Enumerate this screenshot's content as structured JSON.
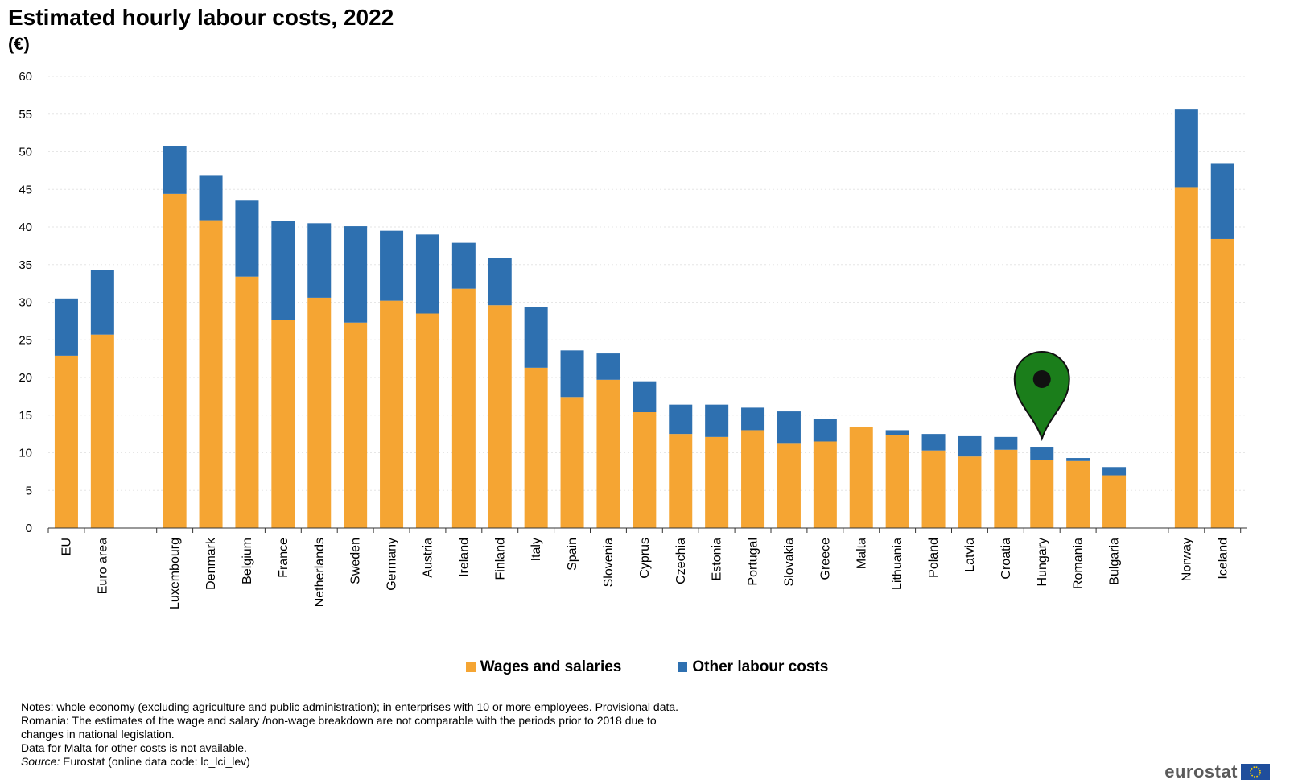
{
  "title": "Estimated hourly labour costs, 2022",
  "unit": "(€)",
  "colors": {
    "wages": "#f5a533",
    "other": "#2e70b0",
    "marker": "#1b7e1b"
  },
  "legend": {
    "wages_label": "Wages and salaries",
    "other_label": "Other labour costs"
  },
  "notes": [
    "Notes: whole economy (excluding agriculture and public administration); in enterprises with 10 or more employees. Provisional data.",
    "Romania: The estimates of the wage and salary /non-wage breakdown are not comparable with the periods prior to 2018 due to",
    "changes in national legislation.",
    "Data for Malta for other costs is not available."
  ],
  "source": {
    "label": "Source:",
    "text": "Eurostat (online data code: lc_lci_lev)"
  },
  "logo": {
    "text": "eurostat",
    "flag_icon": "eu-flag-icon"
  },
  "annotation": {
    "marker_icon": "map-pin-icon",
    "marker_category": "Hungary"
  },
  "chart_data": {
    "type": "bar",
    "stacked": true,
    "title": "Estimated hourly labour costs, 2022",
    "ylabel": "(€)",
    "xlabel": "",
    "ylim": [
      0,
      60
    ],
    "yticks": [
      0,
      5,
      10,
      15,
      20,
      25,
      30,
      35,
      40,
      45,
      50,
      55,
      60
    ],
    "groups": [
      [
        "EU",
        "Euro area"
      ],
      [
        "Luxembourg",
        "Denmark",
        "Belgium",
        "France",
        "Netherlands",
        "Sweden",
        "Germany",
        "Austria",
        "Ireland",
        "Finland",
        "Italy",
        "Spain",
        "Slovenia",
        "Cyprus",
        "Czechia",
        "Estonia",
        "Portugal",
        "Slovakia",
        "Greece",
        "Malta",
        "Lithuania",
        "Poland",
        "Latvia",
        "Croatia",
        "Hungary",
        "Romania",
        "Bulgaria"
      ],
      [
        "Norway",
        "Iceland"
      ]
    ],
    "categories": [
      "EU",
      "Euro area",
      "Luxembourg",
      "Denmark",
      "Belgium",
      "France",
      "Netherlands",
      "Sweden",
      "Germany",
      "Austria",
      "Ireland",
      "Finland",
      "Italy",
      "Spain",
      "Slovenia",
      "Cyprus",
      "Czechia",
      "Estonia",
      "Portugal",
      "Slovakia",
      "Greece",
      "Malta",
      "Lithuania",
      "Poland",
      "Latvia",
      "Croatia",
      "Hungary",
      "Romania",
      "Bulgaria",
      "Norway",
      "Iceland"
    ],
    "series": [
      {
        "name": "Wages and salaries",
        "values": [
          22.9,
          25.7,
          44.4,
          40.9,
          33.4,
          27.7,
          30.6,
          27.3,
          30.2,
          28.5,
          31.8,
          29.6,
          21.3,
          17.4,
          19.7,
          15.4,
          12.5,
          12.1,
          13.0,
          11.3,
          11.5,
          13.4,
          12.4,
          10.3,
          9.5,
          10.4,
          9.0,
          8.9,
          7.0,
          45.3,
          38.4
        ]
      },
      {
        "name": "Other labour costs",
        "values": [
          7.6,
          8.6,
          6.3,
          5.9,
          10.1,
          13.1,
          9.9,
          12.8,
          9.3,
          10.5,
          6.1,
          6.3,
          8.1,
          6.2,
          3.5,
          4.1,
          3.9,
          4.3,
          3.0,
          4.2,
          3.0,
          0.0,
          0.6,
          2.2,
          2.7,
          1.7,
          1.8,
          0.4,
          1.1,
          10.3,
          10.0
        ]
      }
    ]
  }
}
